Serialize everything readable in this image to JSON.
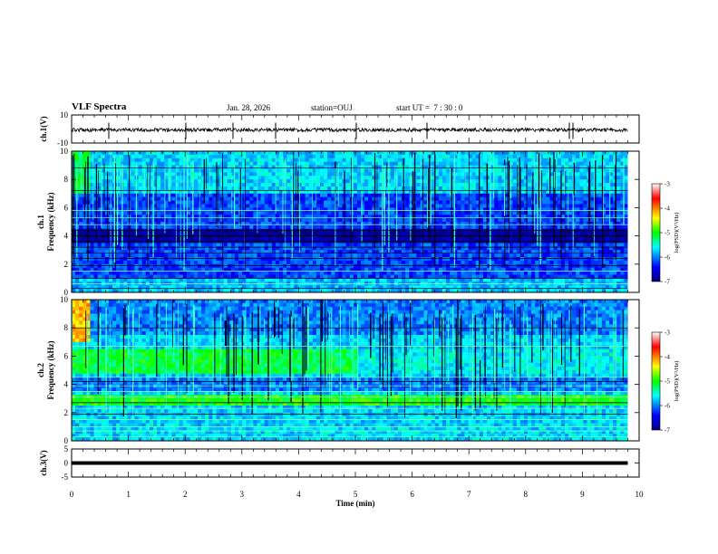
{
  "header": {
    "title": "VLF Spectra",
    "date": "Jan. 28, 2026",
    "station": "station=OUJ",
    "start_label": "start UT =",
    "start_time": "7 : 30 : 0"
  },
  "chart_data": [
    {
      "type": "line",
      "ylabel": "ch.1(V)",
      "ylim": [
        -10,
        10
      ],
      "yticks": [
        "10",
        "-10"
      ],
      "description_value_level": 0
    },
    {
      "type": "heatmap",
      "ylabel": "ch.1 Frequency (kHz)",
      "ylim": [
        0,
        10
      ],
      "yticks": [
        "0",
        "2",
        "4",
        "6",
        "8",
        "10"
      ],
      "colorbar": {
        "label": "log(PSD)(V²/Hz)",
        "range": [
          -7,
          -3
        ],
        "ticks": [
          "-3",
          "-4",
          "-5",
          "-6",
          "-7"
        ]
      }
    },
    {
      "type": "heatmap",
      "ylabel": "ch.2 Frequency (kHz)",
      "ylim": [
        0,
        10
      ],
      "yticks": [
        "0",
        "2",
        "4",
        "6",
        "8",
        "10"
      ],
      "colorbar": {
        "label": "log(PSD)(V²/Hz)",
        "range": [
          -7,
          -3
        ],
        "ticks": [
          "-3",
          "-4",
          "-5",
          "-6",
          "-7"
        ]
      }
    },
    {
      "type": "line",
      "ylabel": "ch.3(V)",
      "ylim": [
        -5,
        5
      ],
      "yticks": [
        "5",
        "0",
        "-5"
      ],
      "x": [
        0,
        9.8
      ],
      "y": [
        0,
        0
      ]
    }
  ],
  "xaxis": {
    "label": "Time (min)",
    "xlim": [
      0,
      10
    ],
    "ticks": [
      "0",
      "1",
      "2",
      "3",
      "4",
      "5",
      "6",
      "7",
      "8",
      "9",
      "10"
    ]
  }
}
